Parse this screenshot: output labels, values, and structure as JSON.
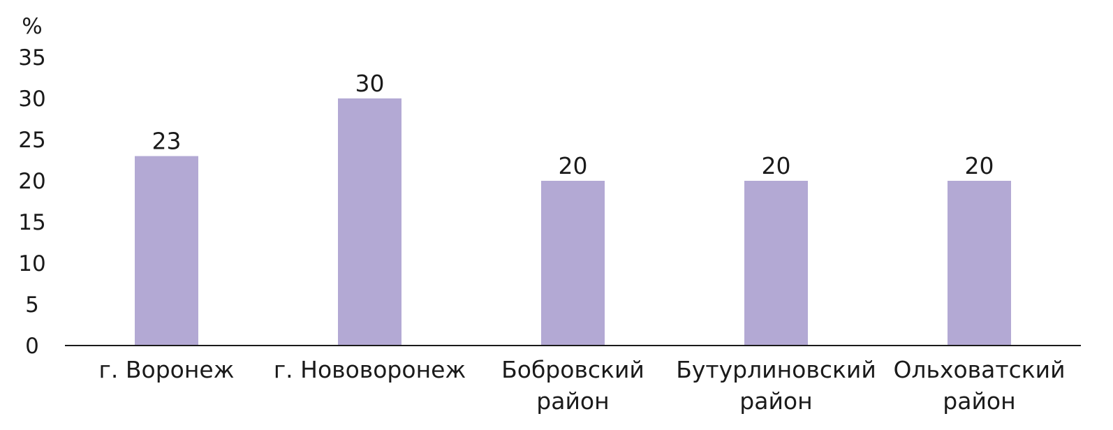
{
  "chart_data": {
    "type": "bar",
    "y_unit": "%",
    "categories": [
      [
        "г. Воронеж"
      ],
      [
        "г. Нововоронеж"
      ],
      [
        "Бобровский",
        "район"
      ],
      [
        "Бутурлиновский",
        "район"
      ],
      [
        "Ольховатский",
        "район"
      ]
    ],
    "values": [
      23,
      30,
      20,
      20,
      20
    ],
    "data_labels": [
      "23",
      "30",
      "20",
      "20",
      "20"
    ],
    "ylim": [
      0,
      35
    ],
    "yticks": [
      0,
      5,
      10,
      15,
      20,
      25,
      30,
      35
    ],
    "grid": false,
    "legend": "none",
    "bar_color": "#B3A9D4",
    "axis_color": "#1a1a1a"
  }
}
